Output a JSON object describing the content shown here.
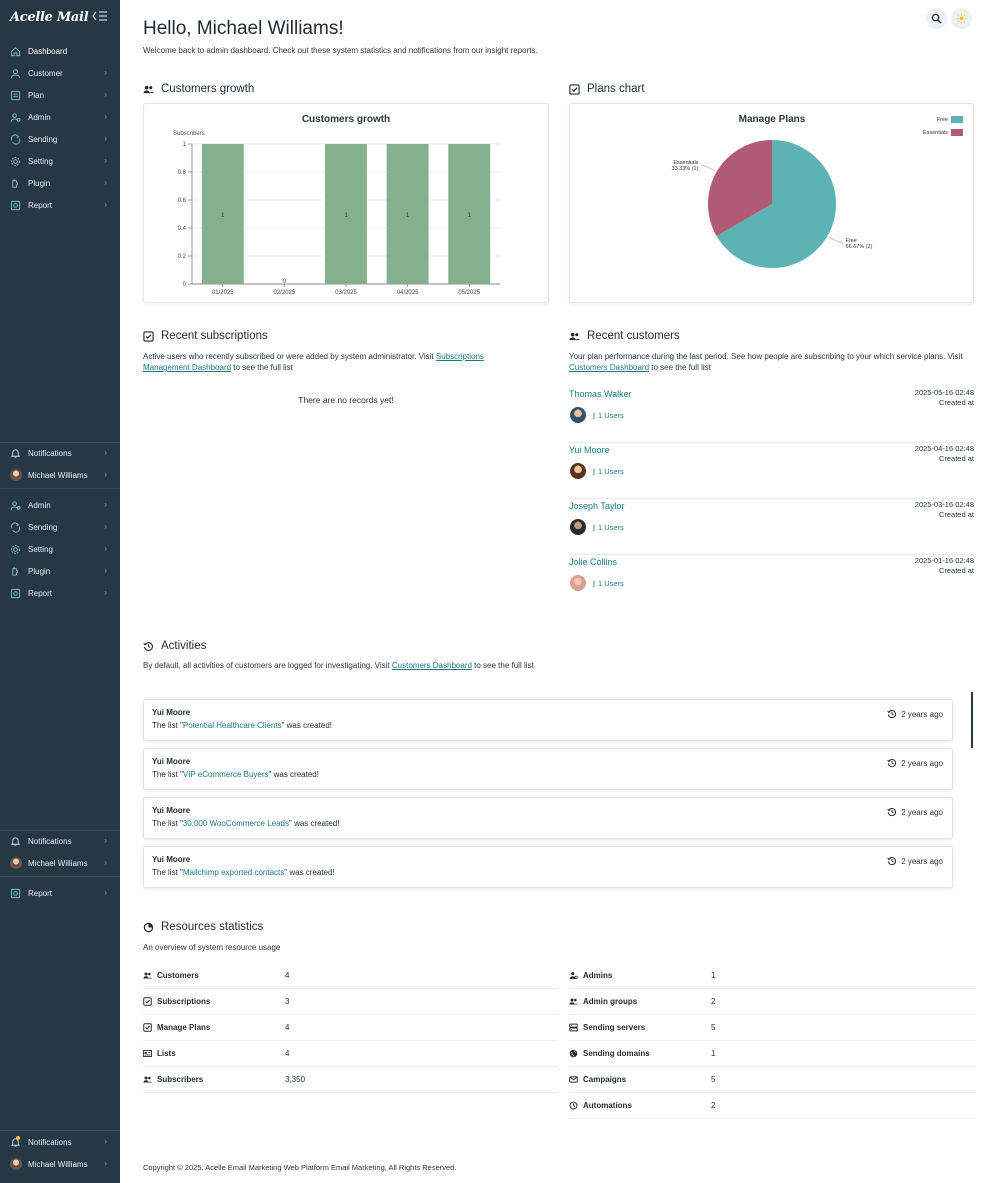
{
  "brand": {
    "logo_text": "Acelle Mail"
  },
  "sidebar": {
    "main_items": [
      {
        "label": "Dashboard",
        "icon": "home-icon"
      },
      {
        "label": "Customer",
        "icon": "user-icon"
      },
      {
        "label": "Plan",
        "icon": "plan-icon"
      },
      {
        "label": "Admin",
        "icon": "admin-icon"
      },
      {
        "label": "Sending",
        "icon": "sending-icon"
      },
      {
        "label": "Setting",
        "icon": "gear-icon"
      },
      {
        "label": "Plugin",
        "icon": "plugin-icon"
      },
      {
        "label": "Report",
        "icon": "report-icon"
      }
    ],
    "group2": {
      "notifications": "Notifications",
      "user": "Michael Williams",
      "items": [
        {
          "label": "Admin",
          "icon": "admin-icon"
        },
        {
          "label": "Sending",
          "icon": "sending-icon"
        },
        {
          "label": "Setting",
          "icon": "gear-icon"
        },
        {
          "label": "Plugin",
          "icon": "plugin-icon"
        },
        {
          "label": "Report",
          "icon": "report-icon"
        }
      ]
    },
    "group3": {
      "notifications": "Notifications",
      "user": "Michael Williams",
      "report": "Report"
    },
    "group4": {
      "notifications": "Notifications",
      "user": "Michael Williams"
    }
  },
  "header": {
    "title": "Hello, Michael Williams!",
    "subtitle": "Welcome back to admin dashboard. Check out these system statistics and notifications from our insight reports."
  },
  "customers_growth": {
    "section_title": "Customers growth",
    "chart_data": {
      "type": "bar",
      "title": "Customers growth",
      "ylabel": "Subscribers",
      "categories": [
        "01/2025",
        "02/2025",
        "03/2025",
        "04/2025",
        "05/2025"
      ],
      "values": [
        1,
        0,
        1,
        1,
        1
      ],
      "ylim": [
        0,
        1
      ],
      "yticks": [
        "0",
        "0.2",
        "0.4",
        "0.6",
        "0.8",
        "1"
      ],
      "color": "#85b08f"
    }
  },
  "plans_chart": {
    "section_title": "Plans chart",
    "chart_data": {
      "type": "pie",
      "title": "Manage Plans",
      "slices": [
        {
          "name": "Free",
          "value": 2,
          "label": "Free",
          "pct_label": "66.67% (2)",
          "color": "#5db3b3"
        },
        {
          "name": "Essentials",
          "value": 1,
          "label": "Essentials",
          "pct_label": "33.33% (1)",
          "color": "#b05a74"
        }
      ],
      "legend_position": "top-right"
    }
  },
  "recent_subscriptions": {
    "title": "Recent subscriptions",
    "desc_prefix": "Active users who recently subscribed or were added by system administrator. Visit ",
    "link": "Subscriptions Management Dashboard",
    "desc_suffix": " to see the full list",
    "empty": "There are no records yet!"
  },
  "recent_customers": {
    "title": "Recent customers",
    "desc_prefix": "Your plan performance during the last period. See how people are subscribing to your which service plans. Visit ",
    "link": "Customers Dashboard",
    "desc_suffix": " to see the full list",
    "customers": [
      {
        "name": "Thomas Walker",
        "users": "1 Users",
        "date": "2025-05-16 02:48",
        "date_label": "Created at"
      },
      {
        "name": "Yui Moore",
        "users": "1 Users",
        "date": "2025-04-16 02:48",
        "date_label": "Created at"
      },
      {
        "name": "Joseph Taylor",
        "users": "1 Users",
        "date": "2025-03-16 02:48",
        "date_label": "Created at"
      },
      {
        "name": "Jolie Collins",
        "users": "1 Users",
        "date": "2025-01-16 02:48",
        "date_label": "Created at"
      }
    ]
  },
  "activities": {
    "title": "Activities",
    "desc_prefix": "By default, all activities of customers are logged for investigating. Visit ",
    "link": "Customers Dashboard",
    "desc_suffix": " to see the full list",
    "items": [
      {
        "user": "Yui Moore",
        "prefix": "The list \"",
        "list": "Potential Healthcare Clients",
        "suffix": "\" was created!",
        "time": "2 years ago"
      },
      {
        "user": "Yui Moore",
        "prefix": "The list \"",
        "list": "VIP eCommerce Buyers",
        "suffix": "\" was created!",
        "time": "2 years ago"
      },
      {
        "user": "Yui Moore",
        "prefix": "The list \"",
        "list": "30,000 WooCommerce Leads",
        "suffix": "\" was created!",
        "time": "2 years ago"
      },
      {
        "user": "Yui Moore",
        "prefix": "The list \"",
        "list": "Mailchimp exported contacts",
        "suffix": "\" was created!",
        "time": "2 years ago"
      }
    ]
  },
  "resources": {
    "title": "Resources statistics",
    "desc": "An overview of system resource usage",
    "left": [
      {
        "label": "Customers",
        "value": "4",
        "icon": "users-icon"
      },
      {
        "label": "Subscriptions",
        "value": "3",
        "icon": "checklist-icon"
      },
      {
        "label": "Manage Plans",
        "value": "4",
        "icon": "plans-icon"
      },
      {
        "label": "Lists",
        "value": "4",
        "icon": "lists-icon"
      },
      {
        "label": "Subscribers",
        "value": "3,350",
        "icon": "subscribers-icon"
      }
    ],
    "right": [
      {
        "label": "Admins",
        "value": "1",
        "icon": "admins-icon"
      },
      {
        "label": "Admin groups",
        "value": "2",
        "icon": "admin-groups-icon"
      },
      {
        "label": "Sending servers",
        "value": "5",
        "icon": "server-icon"
      },
      {
        "label": "Sending domains",
        "value": "1",
        "icon": "globe-icon"
      },
      {
        "label": "Campaigns",
        "value": "5",
        "icon": "mail-icon"
      },
      {
        "label": "Automations",
        "value": "2",
        "icon": "clock-icon"
      }
    ]
  },
  "footer": {
    "text": "Copyright © 2025. Acelle Email Marketing Web Platform Email Marketing, All Rights Reserved."
  }
}
